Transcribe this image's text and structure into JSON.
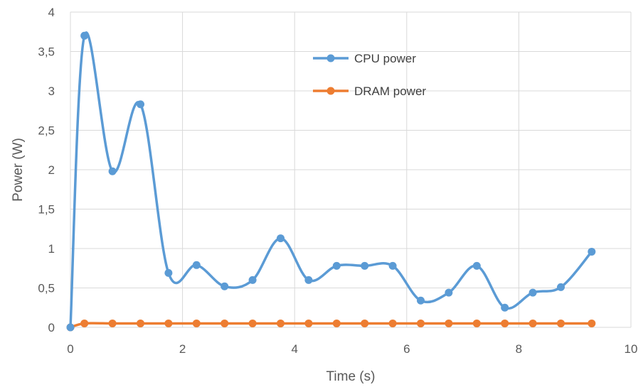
{
  "chart_data": {
    "type": "line",
    "xlabel": "Time (s)",
    "ylabel": "Power (W)",
    "xlim": [
      0,
      10
    ],
    "ylim": [
      0,
      4
    ],
    "x_ticks": [
      "0",
      "2",
      "4",
      "6",
      "8",
      "10"
    ],
    "y_ticks": [
      "0",
      "0,5",
      "1",
      "1,5",
      "2",
      "2,5",
      "3",
      "3,5",
      "4"
    ],
    "grid": true,
    "smooth": true,
    "legend_position": "top-center",
    "series": [
      {
        "name": "CPU power",
        "color": "#5b9bd5",
        "x": [
          0,
          0.25,
          0.75,
          1.25,
          1.75,
          2.25,
          2.75,
          3.25,
          3.75,
          4.25,
          4.75,
          5.25,
          5.75,
          6.25,
          6.75,
          7.25,
          7.75,
          8.25,
          8.75,
          9.3
        ],
        "y": [
          0,
          3.7,
          1.98,
          2.83,
          0.69,
          0.79,
          0.52,
          0.6,
          1.13,
          0.6,
          0.78,
          0.78,
          0.78,
          0.34,
          0.44,
          0.78,
          0.25,
          0.44,
          0.51,
          0.96
        ]
      },
      {
        "name": "DRAM power",
        "color": "#ed7d31",
        "x": [
          0,
          0.25,
          0.75,
          1.25,
          1.75,
          2.25,
          2.75,
          3.25,
          3.75,
          4.25,
          4.75,
          5.25,
          5.75,
          6.25,
          6.75,
          7.25,
          7.75,
          8.25,
          8.75,
          9.3
        ],
        "y": [
          0,
          0.05,
          0.05,
          0.05,
          0.05,
          0.05,
          0.05,
          0.05,
          0.05,
          0.05,
          0.05,
          0.05,
          0.05,
          0.05,
          0.05,
          0.05,
          0.05,
          0.05,
          0.05,
          0.05
        ]
      }
    ]
  }
}
